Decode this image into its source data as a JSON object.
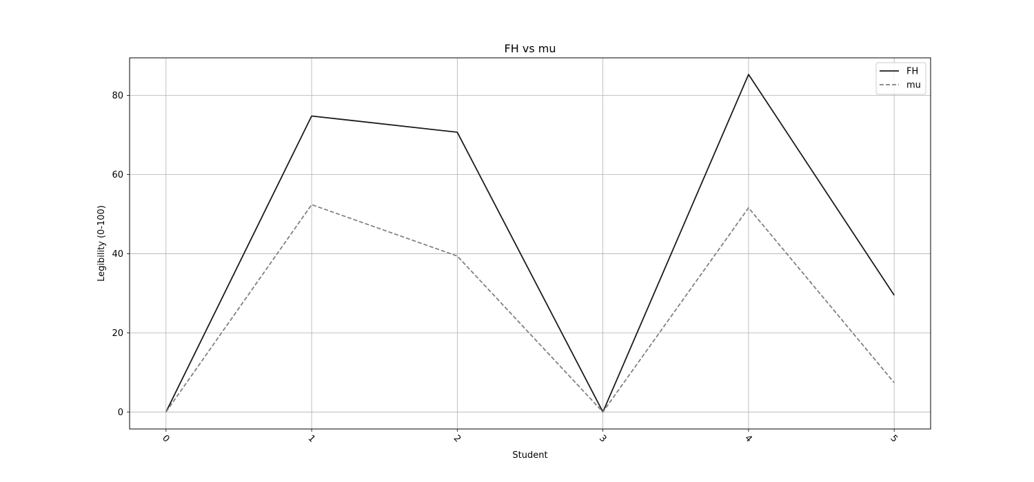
{
  "chart_data": {
    "type": "line",
    "title": "FH vs mu",
    "xlabel": "Student",
    "ylabel": "Legibility (0-100)",
    "x": [
      0,
      1,
      2,
      3,
      4,
      5
    ],
    "x_tick_labels": [
      "0",
      "1",
      "2",
      "3",
      "4",
      "5"
    ],
    "xlim": [
      -0.25,
      5.25
    ],
    "ylim": [
      -4.3,
      89.5
    ],
    "y_ticks": [
      0,
      20,
      40,
      60,
      80
    ],
    "y_tick_labels": [
      "0",
      "20",
      "40",
      "60",
      "80"
    ],
    "grid": true,
    "legend_position": "top-right",
    "series": [
      {
        "name": "FH",
        "values": [
          0,
          74.8,
          70.7,
          0,
          85.3,
          29.5
        ],
        "color": "#1a1a1a",
        "style": "solid"
      },
      {
        "name": "mu",
        "values": [
          0,
          52.4,
          39.4,
          0,
          51.6,
          7.4
        ],
        "color": "#7f7f7f",
        "style": "dashed"
      }
    ]
  }
}
